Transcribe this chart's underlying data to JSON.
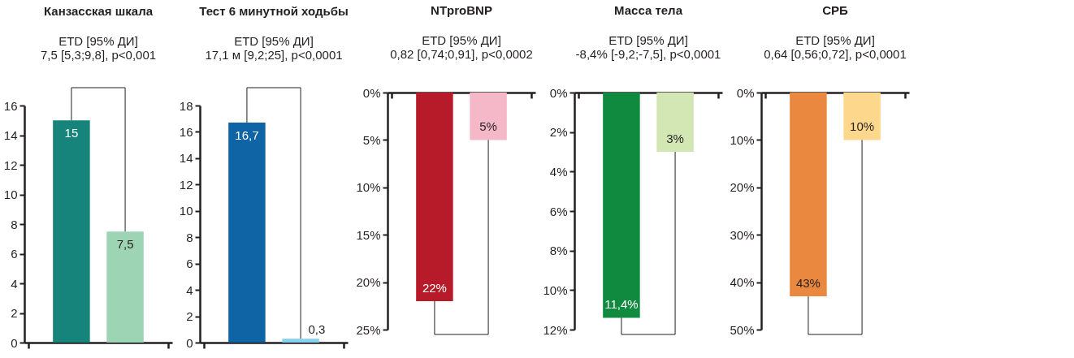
{
  "chart_data": [
    {
      "type": "bar",
      "title": "Канзасская шкала",
      "annotations": [
        "ETD [95% ДИ]",
        "7,5 [5,3;9,8], p<0,001"
      ],
      "categories": [
        null,
        null
      ],
      "values": [
        15,
        7.5
      ],
      "colors": [
        "#17847c",
        "#9dd4b4"
      ],
      "value_labels": [
        "15",
        "7,5"
      ],
      "ylim": [
        0,
        16
      ],
      "yticks": [
        0,
        2,
        4,
        6,
        8,
        10,
        12,
        14,
        16
      ],
      "grid": false
    },
    {
      "type": "bar",
      "title": "Тест 6 минутной ходьбы",
      "annotations": [
        "ETD [95% ДИ]",
        "17,1 м [9,2;25], p<0,0001"
      ],
      "categories": [
        null,
        null
      ],
      "values": [
        16.7,
        0.3
      ],
      "colors": [
        "#0f64a6",
        "#86d1ef"
      ],
      "value_labels": [
        "16,7",
        "0,3"
      ],
      "ylim": [
        0,
        18
      ],
      "yticks": [
        0,
        2,
        4,
        6,
        8,
        10,
        12,
        14,
        16,
        18
      ],
      "grid": false
    },
    {
      "type": "bar",
      "title": "NTproBNP",
      "annotations": [
        "ETD [95% ДИ]",
        "0,82 [0,74;0,91], p<0,0002"
      ],
      "categories": [
        null,
        null
      ],
      "values": [
        22,
        5
      ],
      "colors": [
        "#b71a29",
        "#f5b8c9"
      ],
      "value_labels": [
        "22%",
        "5%"
      ],
      "ylim": [
        25,
        0
      ],
      "yticks": [
        {
          "value": 0,
          "label": "0%"
        },
        {
          "value": 5,
          "label": "5%"
        },
        {
          "value": 10,
          "label": "10%"
        },
        {
          "value": 15,
          "label": "15%"
        },
        {
          "value": 20,
          "label": "20%"
        },
        {
          "value": 25,
          "label": "25%"
        }
      ],
      "grid": false
    },
    {
      "type": "bar",
      "title": "Масса тела",
      "annotations": [
        "ETD [95% ДИ]",
        "-8,4% [-9,2;-7,5], p<0,0001"
      ],
      "categories": [
        null,
        null
      ],
      "values": [
        11.4,
        3
      ],
      "colors": [
        "#0f8a3e",
        "#d3e7b4"
      ],
      "value_labels": [
        "11,4%",
        "3%"
      ],
      "ylim": [
        12,
        0
      ],
      "yticks": [
        {
          "value": 0,
          "label": "0%"
        },
        {
          "value": 2,
          "label": "2%"
        },
        {
          "value": 4,
          "label": "4%"
        },
        {
          "value": 6,
          "label": "6%"
        },
        {
          "value": 8,
          "label": "8%"
        },
        {
          "value": 10,
          "label": "10%"
        },
        {
          "value": 12,
          "label": "12%"
        }
      ],
      "grid": false
    },
    {
      "type": "bar",
      "title": "СРБ",
      "annotations": [
        "ETD [95% ДИ]",
        "0,64 [0,56;0,72], p<0,0001"
      ],
      "categories": [
        null,
        null
      ],
      "values": [
        43,
        10
      ],
      "colors": [
        "#ea883f",
        "#fdd88c"
      ],
      "value_labels": [
        "43%",
        "10%"
      ],
      "ylim": [
        50,
        0
      ],
      "yticks": [
        {
          "value": 0,
          "label": "0%"
        },
        {
          "value": 10,
          "label": "10%"
        },
        {
          "value": 20,
          "label": "20%"
        },
        {
          "value": 30,
          "label": "30%"
        },
        {
          "value": 40,
          "label": "40%"
        },
        {
          "value": 50,
          "label": "50%"
        }
      ],
      "grid": false
    }
  ]
}
